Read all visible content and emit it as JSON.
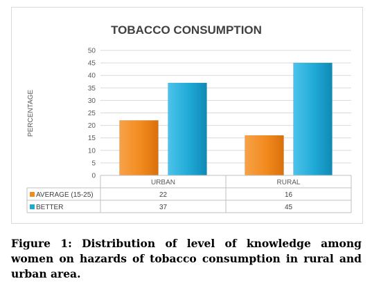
{
  "chart_data": {
    "type": "bar",
    "title": "TOBACCO CONSUMPTION",
    "ylabel": "PERCENTAGE",
    "xlabel": "",
    "ylim": [
      0,
      50
    ],
    "yticks": [
      0,
      5,
      10,
      15,
      20,
      25,
      30,
      35,
      40,
      45,
      50
    ],
    "categories": [
      "URBAN",
      "RURAL"
    ],
    "series": [
      {
        "name": "AVERAGE (15-25)",
        "values": [
          22,
          16
        ],
        "color": "#f28a1e"
      },
      {
        "name": "BETTER",
        "values": [
          37,
          45
        ],
        "color": "#1fa9d6"
      }
    ],
    "grid": true,
    "legend": "data-table"
  },
  "caption": "Figure 1: Distribution of level of knowledge among women on hazards of tobacco consumption in rural and urban area."
}
